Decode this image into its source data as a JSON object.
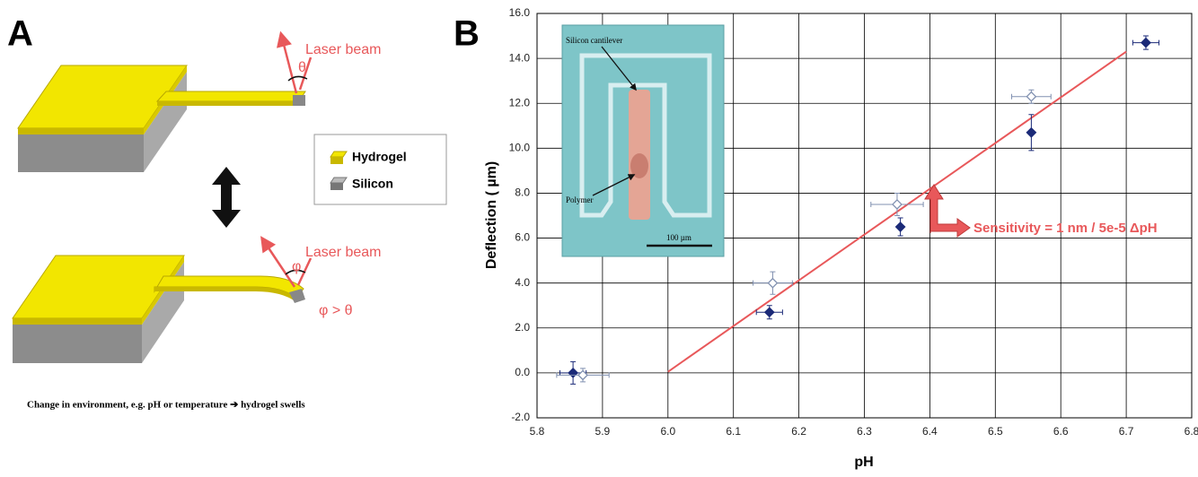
{
  "panel_a": {
    "label": "A",
    "top_laser": "Laser beam",
    "top_angle": "θ",
    "legend_hydrogel": "Hydrogel",
    "legend_silicon": "Silicon",
    "bottom_laser": "Laser beam",
    "bottom_angle": "φ",
    "bottom_relation": "φ > θ",
    "caption": "Change in environment, e.g. pH or temperature ➔ hydrogel swells"
  },
  "chart_data": {
    "type": "scatter",
    "panel_label": "B",
    "xlabel": "pH",
    "ylabel": "Deflection ( µm)",
    "xlim": [
      5.8,
      6.8
    ],
    "ylim": [
      -2,
      16
    ],
    "xticks": [
      5.8,
      5.9,
      {
        "value": 6,
        "label": "6.0"
      },
      6.1,
      6.2,
      6.3,
      6.4,
      6.5,
      6.6,
      6.7,
      6.8
    ],
    "yticks": [
      {
        "value": -2,
        "label": "-2.0"
      },
      {
        "value": 0,
        "label": "0.0"
      },
      {
        "value": 2,
        "label": "2.0"
      },
      {
        "value": 4,
        "label": "4.0"
      },
      {
        "value": 6,
        "label": "6.0"
      },
      {
        "value": 8,
        "label": "8.0"
      },
      {
        "value": 10,
        "label": "10.0"
      },
      {
        "value": 12,
        "label": "12.0"
      },
      {
        "value": 14,
        "label": "14.0"
      },
      {
        "value": 16,
        "label": "16.0"
      }
    ],
    "grid": true,
    "series": [
      {
        "color": "#1b2a78",
        "filled": true,
        "x": [
          5.855,
          6.155,
          6.355,
          6.555,
          6.73
        ],
        "values": [
          0.0,
          2.7,
          6.5,
          10.7,
          14.7
        ],
        "xerr": [
          0.02,
          0.02,
          0,
          0,
          0.02
        ],
        "yerr": [
          0.5,
          0.3,
          0.4,
          0.8,
          0.3
        ]
      },
      {
        "color": "#8090b0",
        "filled": false,
        "x": [
          5.87,
          6.16,
          6.35,
          6.555
        ],
        "values": [
          -0.1,
          4.0,
          7.5,
          12.3
        ],
        "xerr": [
          0.04,
          0.03,
          0.04,
          0.03
        ],
        "yerr": [
          0.3,
          0.5,
          0.5,
          0.3
        ]
      }
    ],
    "fit": {
      "color": "#e8585a",
      "x": [
        6.0,
        6.7
      ],
      "values": [
        0.05,
        14.3
      ]
    },
    "annotation": "Sensitivity = 1 nm / 5e-5 ΔpH",
    "inset": {
      "cantilever": "Silicon cantilever",
      "polymer": "Polymer",
      "scale": "100 µm"
    }
  }
}
